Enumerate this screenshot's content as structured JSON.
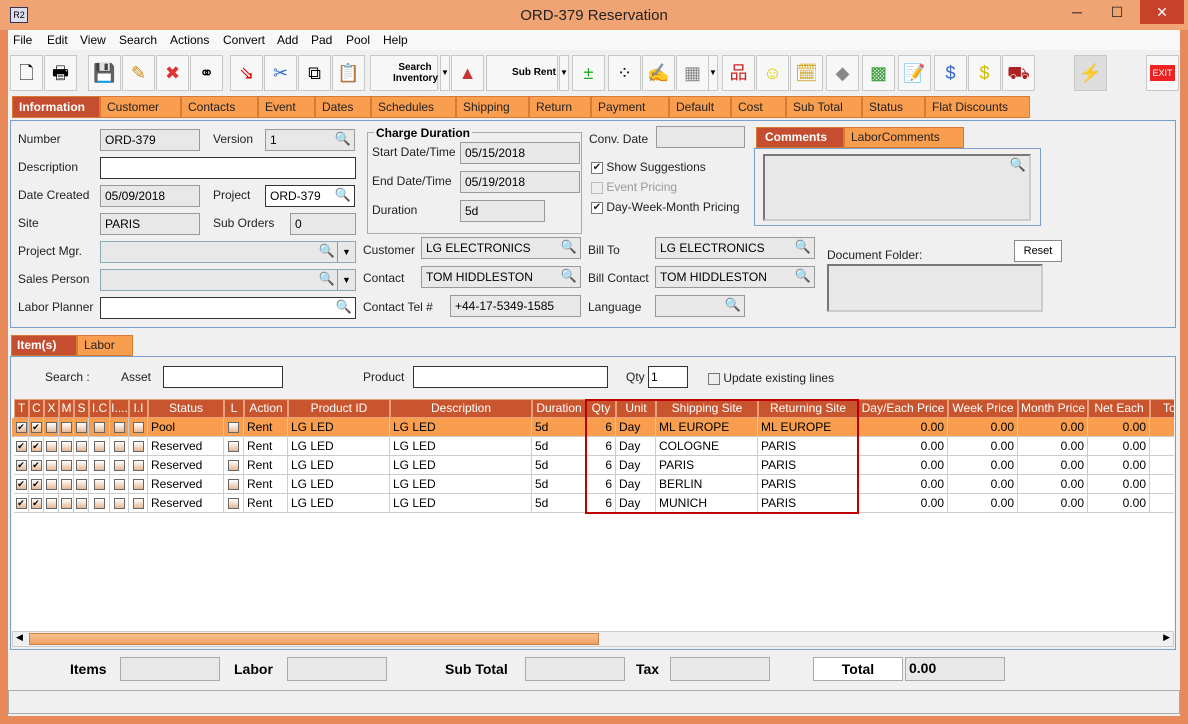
{
  "window": {
    "title": "ORD-379 Reservation",
    "app_icon": "R2",
    "minimize": "─",
    "maximize": "☐",
    "close": "✕"
  },
  "menu": [
    "File",
    "Edit",
    "View",
    "Search",
    "Actions",
    "Convert",
    "Add",
    "Pad",
    "Pool",
    "Help"
  ],
  "toolbar": {
    "search_inventory": "Search Inventory",
    "sub_rent": "Sub Rent",
    "exit": "EXIT",
    "icons": [
      "new-document-icon",
      "print-icon",
      "save-icon",
      "edit-pencil-icon",
      "delete-x-icon",
      "binoculars-icon",
      "transfer-icon",
      "cut-icon",
      "copy-icon",
      "paste-icon"
    ],
    "icons2": [
      "add-remove-icon",
      "pool-icon",
      "notes-icon",
      "calculator-icon"
    ],
    "icons3": [
      "hierarchy-icon",
      "smiley-icon",
      "schedule-icon",
      "eraser-icon",
      "cube-icon",
      "edit-form-icon",
      "money-icon",
      "invoice-icon",
      "truck-icon",
      "lightning-icon"
    ]
  },
  "tabs": [
    "Information",
    "Customer",
    "Contacts",
    "Event",
    "Dates",
    "Schedules",
    "Shipping",
    "Return",
    "Payment",
    "Default",
    "Cost",
    "Sub Total",
    "Status",
    "Flat Discounts"
  ],
  "info": {
    "number_label": "Number",
    "number": "ORD-379",
    "version_label": "Version",
    "version": "1",
    "description_label": "Description",
    "description": "",
    "date_created_label": "Date Created",
    "date_created": "05/09/2018",
    "project_label": "Project",
    "project": "ORD-379",
    "site_label": "Site",
    "site": "PARIS",
    "sub_orders_label": "Sub Orders",
    "sub_orders": "0",
    "project_mgr_label": "Project Mgr.",
    "sales_person_label": "Sales Person",
    "labor_planner_label": "Labor Planner",
    "charge_duration_title": "Charge Duration",
    "start_label": "Start Date/Time",
    "start": "05/15/2018",
    "end_label": "End Date/Time",
    "end": "05/19/2018",
    "duration_label": "Duration",
    "duration": "5d",
    "conv_date_label": "Conv. Date",
    "show_suggestions": "Show Suggestions",
    "event_pricing": "Event Pricing",
    "dwm_pricing": "Day-Week-Month Pricing",
    "customer_label": "Customer",
    "customer": "LG ELECTRONICS",
    "contact_label": "Contact",
    "contact": "TOM HIDDLESTON",
    "contact_tel_label": "Contact Tel #",
    "contact_tel": "+44-17-5349-1585",
    "bill_to_label": "Bill To",
    "bill_to": "LG ELECTRONICS",
    "bill_contact_label": "Bill Contact",
    "bill_contact": "TOM HIDDLESTON",
    "language_label": "Language",
    "comments_tab": "Comments",
    "labor_comments_tab": "LaborComments",
    "document_folder_label": "Document Folder:",
    "reset": "Reset"
  },
  "items_tabs": [
    "Item(s)",
    "Labor"
  ],
  "filter": {
    "search_label": "Search :",
    "asset_label": "Asset",
    "product_label": "Product",
    "qty_label": "Qty",
    "qty": "1",
    "update_existing": "Update existing lines"
  },
  "table": {
    "headers": [
      "T",
      "C",
      "X",
      "M",
      "S",
      "I.C",
      "I....",
      "I.I",
      "Status",
      "L",
      "Action",
      "Product ID",
      "Description",
      "Duration",
      "Qty",
      "Unit",
      "Shipping Site",
      "Returning Site",
      "Day/Each Price",
      "Week Price",
      "Month Price",
      "Net Each",
      "Tot"
    ],
    "rows": [
      {
        "status": "Pool",
        "action": "Rent",
        "product_id": "LG LED",
        "description": "LG LED",
        "duration": "5d",
        "qty": "6",
        "unit": "Day",
        "shipping": "ML EUROPE",
        "returning": "ML EUROPE",
        "day": "0.00",
        "week": "0.00",
        "month": "0.00",
        "net": "0.00"
      },
      {
        "status": "Reserved",
        "action": "Rent",
        "product_id": "LG LED",
        "description": "LG LED",
        "duration": "5d",
        "qty": "6",
        "unit": "Day",
        "shipping": "COLOGNE",
        "returning": "PARIS",
        "day": "0.00",
        "week": "0.00",
        "month": "0.00",
        "net": "0.00"
      },
      {
        "status": "Reserved",
        "action": "Rent",
        "product_id": "LG LED",
        "description": "LG LED",
        "duration": "5d",
        "qty": "6",
        "unit": "Day",
        "shipping": "PARIS",
        "returning": "PARIS",
        "day": "0.00",
        "week": "0.00",
        "month": "0.00",
        "net": "0.00"
      },
      {
        "status": "Reserved",
        "action": "Rent",
        "product_id": "LG LED",
        "description": "LG LED",
        "duration": "5d",
        "qty": "6",
        "unit": "Day",
        "shipping": "BERLIN",
        "returning": "PARIS",
        "day": "0.00",
        "week": "0.00",
        "month": "0.00",
        "net": "0.00"
      },
      {
        "status": "Reserved",
        "action": "Rent",
        "product_id": "LG LED",
        "description": "LG LED",
        "duration": "5d",
        "qty": "6",
        "unit": "Day",
        "shipping": "MUNICH",
        "returning": "PARIS",
        "day": "0.00",
        "week": "0.00",
        "month": "0.00",
        "net": "0.00"
      }
    ]
  },
  "totals": {
    "items_label": "Items",
    "labor_label": "Labor",
    "subtotal_label": "Sub Total",
    "tax_label": "Tax",
    "total_label": "Total",
    "total": "0.00"
  },
  "colors": {
    "accent": "#c44e2f",
    "tab": "#f99d4f",
    "frame": "#e8895a",
    "highlight": "#c00000"
  }
}
